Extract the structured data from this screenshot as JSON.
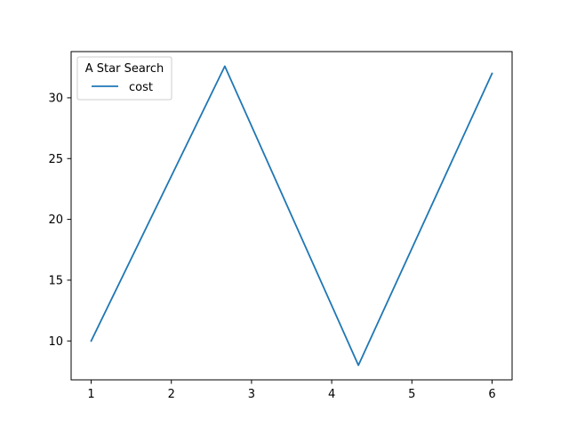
{
  "chart_data": {
    "type": "line",
    "title": "",
    "xlabel": "",
    "ylabel": "",
    "xlim": [
      0.75,
      6.25
    ],
    "ylim": [
      6.8,
      33.8
    ],
    "grid": false,
    "x_ticks": [
      1,
      2,
      3,
      4,
      5,
      6
    ],
    "y_ticks": [
      10,
      15,
      20,
      25,
      30
    ],
    "legend": {
      "title": "A Star Search",
      "placement": "top-left"
    },
    "series": [
      {
        "name": "cost",
        "color": "#1f77b4",
        "x": [
          1,
          2.667,
          4.333,
          6
        ],
        "y": [
          10,
          32.6,
          8,
          32
        ]
      }
    ]
  }
}
